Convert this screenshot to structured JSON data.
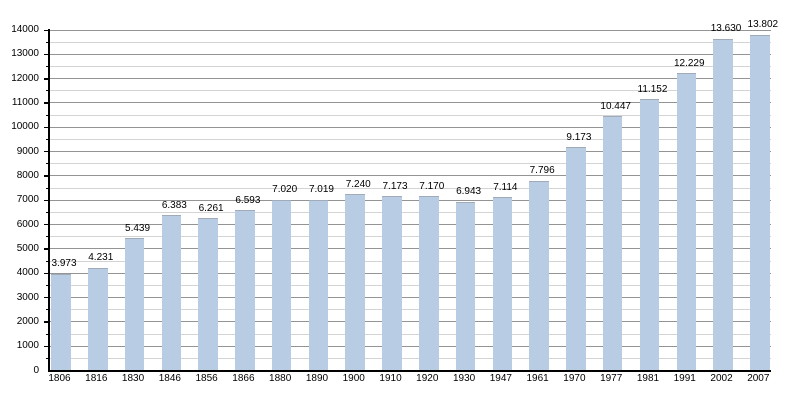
{
  "chart_data": {
    "type": "bar",
    "title": "",
    "xlabel": "",
    "ylabel": "",
    "categories": [
      "1806",
      "1816",
      "1830",
      "1846",
      "1856",
      "1866",
      "1880",
      "1890",
      "1900",
      "1910",
      "1920",
      "1930",
      "1947",
      "1961",
      "1970",
      "1977",
      "1981",
      "1991",
      "2002",
      "2007"
    ],
    "values": [
      3973,
      4231,
      5439,
      6383,
      6261,
      6593,
      7020,
      7019,
      7240,
      7173,
      7170,
      6943,
      7114,
      7796,
      9173,
      10447,
      11152,
      12229,
      13630,
      13802
    ],
    "bar_labels": [
      "3.973",
      "4.231",
      "5.439",
      "6.383",
      "6.261",
      "6.593",
      "7.020",
      "7.019",
      "7.240",
      "7.173",
      "7.170",
      "6.943",
      "7.114",
      "7.796",
      "9.173",
      "10.447",
      "11.152",
      "12.229",
      "13.630",
      "13.802"
    ],
    "ylim": [
      0,
      14000
    ],
    "ytick_major_step": 1000,
    "ytick_minor_step": 500,
    "ytick_labels": [
      "0",
      "1000",
      "2000",
      "3000",
      "4000",
      "5000",
      "6000",
      "7000",
      "8000",
      "9000",
      "10000",
      "11000",
      "12000",
      "13000",
      "14000"
    ],
    "grid": "horizontal, major and minor lines, drawn behind bars",
    "legend": "none",
    "colors": {
      "background": "#ffffff",
      "bar_fill": "#b8cce4",
      "bar_top_edge": "#a0aab8",
      "grid_major": "#949494",
      "grid_minor": "#d4d4d4",
      "axis": "#000000",
      "text": "#000000"
    }
  }
}
